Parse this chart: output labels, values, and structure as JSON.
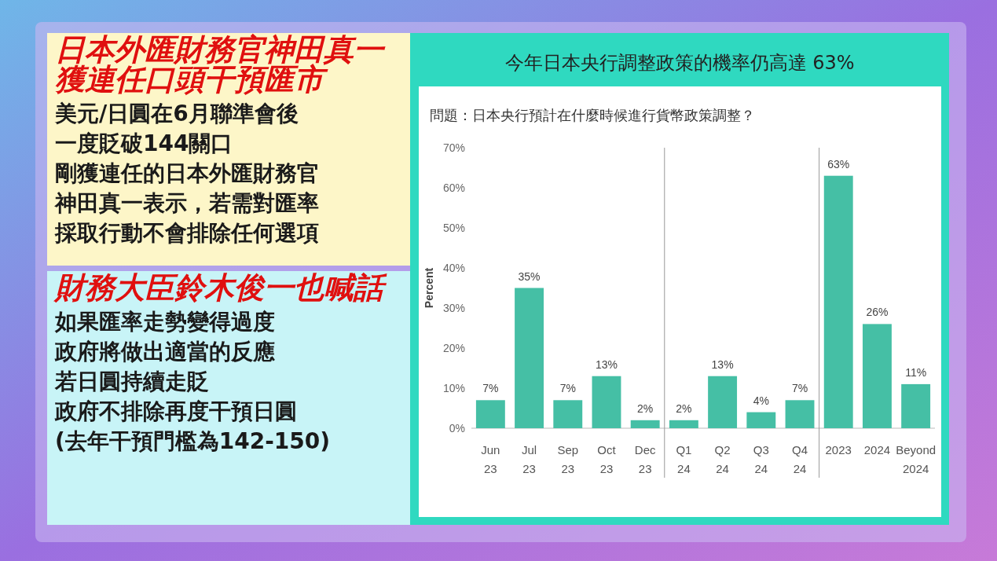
{
  "chart_data": [
    {
      "type": "other",
      "title": "日本外匯財務官神田真一獲連任口頭干預匯市",
      "annotations": [
        "美元/日圓在6月聯準會後",
        "一度貶破144關口",
        "剛獲連任的日本外匯財務官",
        "神田真一表示，若需對匯率",
        "採取行動不會排除任何選項"
      ]
    },
    {
      "type": "other",
      "title": "財務大臣鈴木俊一也喊話",
      "annotations": [
        "如果匯率走勢變得過度",
        "政府將做出適當的反應",
        "若日圓持續走貶",
        "政府不排除再度干預日圓",
        "(去年干預門檻為142-150)"
      ]
    },
    {
      "type": "bar",
      "title": "今年日本央行調整政策的機率仍高達 63%",
      "subtitle": "問題：日本央行預計在什麼時候進行貨幣政策調整？",
      "ylabel": "Percent",
      "categories": [
        "Jun 23",
        "Jul 23",
        "Sep 23",
        "Oct 23",
        "Dec 23",
        "Q1 24",
        "Q2 24",
        "Q3 24",
        "Q4 24",
        "2023",
        "2024",
        "Beyond 2024"
      ],
      "values": [
        7,
        35,
        7,
        13,
        2,
        2,
        13,
        4,
        7,
        63,
        26,
        11
      ],
      "value_labels": [
        "7%",
        "35%",
        "7%",
        "13%",
        "2%",
        "2%",
        "13%",
        "4%",
        "7%",
        "63%",
        "26%",
        "11%"
      ],
      "color": "#45bfa5",
      "ylim": [
        0,
        70
      ],
      "yticks": [
        {
          "value": 0,
          "label": "0%"
        },
        {
          "value": 10,
          "label": "10%"
        },
        {
          "value": 20,
          "label": "20%"
        },
        {
          "value": 30,
          "label": "30%"
        },
        {
          "value": 40,
          "label": "40%"
        },
        {
          "value": 50,
          "label": "50%"
        },
        {
          "value": 60,
          "label": "60%"
        },
        {
          "value": 70,
          "label": "70%"
        }
      ],
      "grid": false
    }
  ]
}
